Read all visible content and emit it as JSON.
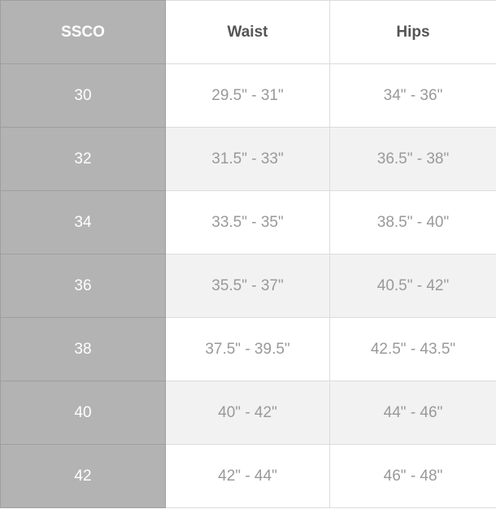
{
  "table": {
    "header": [
      "SSCO",
      "Waist",
      "Hips"
    ],
    "rows": [
      [
        "30",
        "29.5\" - 31\"",
        "34\" - 36\""
      ],
      [
        "32",
        "31.5\" - 33\"",
        "36.5\" - 38\""
      ],
      [
        "34",
        "33.5\" - 35\"",
        "38.5\" - 40\""
      ],
      [
        "36",
        "35.5\" - 37\"",
        "40.5\" - 42\""
      ],
      [
        "38",
        "37.5\" - 39.5\"",
        "42.5\" - 43.5\""
      ],
      [
        "40",
        "40\" - 42\"",
        "44\" - 46\""
      ],
      [
        "42",
        "42\" - 44\"",
        "46\" - 48\""
      ]
    ]
  }
}
